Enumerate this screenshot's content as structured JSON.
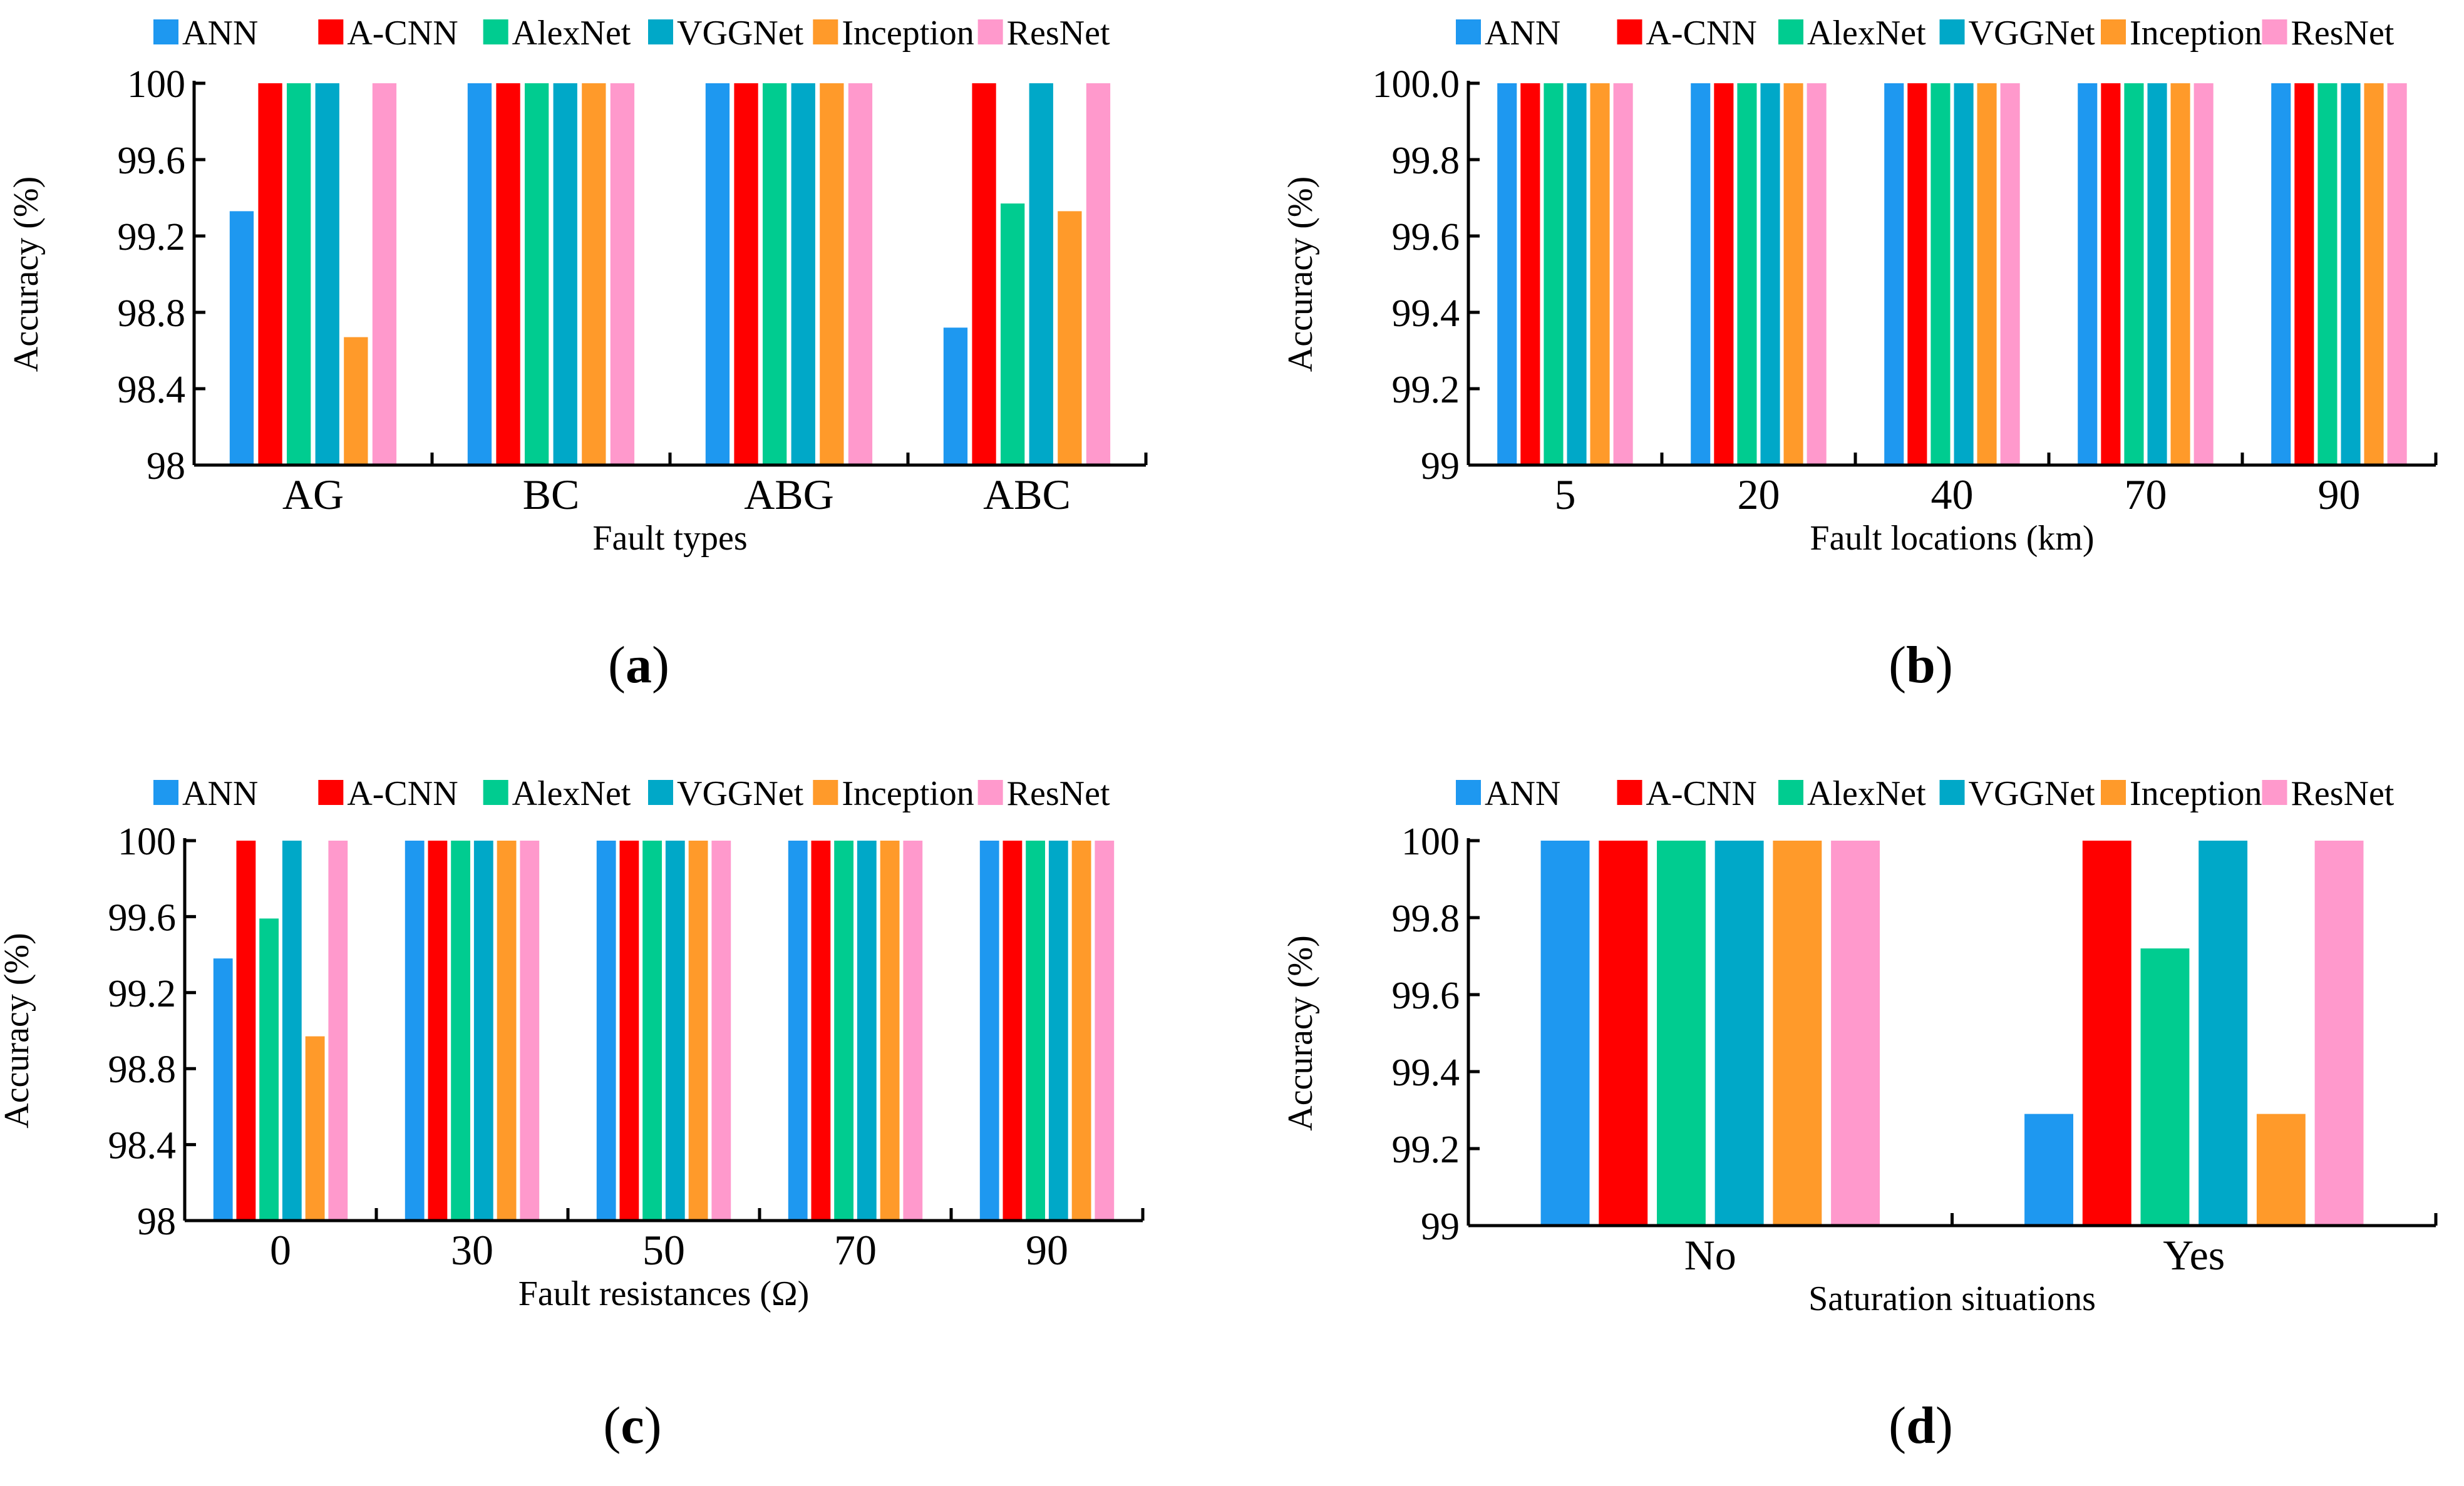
{
  "colors": {
    "ANN": "#1E98F0",
    "A-CNN": "#FF0000",
    "AlexNet": "#00CC90",
    "VGGNet": "#00A8C8",
    "Inception": "#FF9A2A",
    "ResNet": "#FF99CC"
  },
  "chart_data": [
    {
      "type": "bar",
      "panel_label": "a",
      "xlabel": "Fault types",
      "ylabel": "Accuracy (%)",
      "ylim": [
        98,
        100
      ],
      "yticks": [
        98,
        98.4,
        98.8,
        99.2,
        99.6,
        100
      ],
      "ytick_labels": [
        "98",
        "98.4",
        "98.8",
        "99.2",
        "99.6",
        "100"
      ],
      "categories": [
        "AG",
        "BC",
        "ABG",
        "ABC"
      ],
      "legend": "top",
      "series": [
        {
          "name": "ANN",
          "values": [
            99.33,
            100,
            100,
            98.72
          ]
        },
        {
          "name": "A-CNN",
          "values": [
            100,
            100,
            100,
            100
          ]
        },
        {
          "name": "AlexNet",
          "values": [
            100,
            100,
            100,
            99.37
          ]
        },
        {
          "name": "VGGNet",
          "values": [
            100,
            100,
            100,
            100
          ]
        },
        {
          "name": "Inception",
          "values": [
            98.67,
            100,
            100,
            99.33
          ]
        },
        {
          "name": "ResNet",
          "values": [
            100,
            100,
            100,
            100
          ]
        }
      ]
    },
    {
      "type": "bar",
      "panel_label": "b",
      "xlabel": "Fault locations (km)",
      "ylabel": "Accuracy (%)",
      "ylim": [
        99,
        100
      ],
      "yticks": [
        99,
        99.2,
        99.4,
        99.6,
        99.8,
        100
      ],
      "ytick_labels": [
        "99",
        "99.2",
        "99.4",
        "99.6",
        "99.8",
        "100.0"
      ],
      "categories": [
        "5",
        "20",
        "40",
        "70",
        "90"
      ],
      "legend": "top",
      "series": [
        {
          "name": "ANN",
          "values": [
            100,
            100,
            100,
            100,
            100
          ]
        },
        {
          "name": "A-CNN",
          "values": [
            100,
            100,
            100,
            100,
            100
          ]
        },
        {
          "name": "AlexNet",
          "values": [
            100,
            100,
            100,
            100,
            100
          ]
        },
        {
          "name": "VGGNet",
          "values": [
            100,
            100,
            100,
            100,
            100
          ]
        },
        {
          "name": "Inception",
          "values": [
            100,
            100,
            100,
            100,
            100
          ]
        },
        {
          "name": "ResNet",
          "values": [
            100,
            100,
            100,
            100,
            100
          ]
        }
      ]
    },
    {
      "type": "bar",
      "panel_label": "c",
      "xlabel": "Fault resistances (Ω)",
      "ylabel": "Accuracy (%)",
      "ylim": [
        98,
        100
      ],
      "yticks": [
        98,
        98.4,
        98.8,
        99.2,
        99.6,
        100
      ],
      "ytick_labels": [
        "98",
        "98.4",
        "98.8",
        "99.2",
        "99.6",
        "100"
      ],
      "categories": [
        "0",
        "30",
        "50",
        "70",
        "90"
      ],
      "legend": "top",
      "series": [
        {
          "name": "ANN",
          "values": [
            99.38,
            100,
            100,
            100,
            100
          ]
        },
        {
          "name": "A-CNN",
          "values": [
            100,
            100,
            100,
            100,
            100
          ]
        },
        {
          "name": "AlexNet",
          "values": [
            99.59,
            100,
            100,
            100,
            100
          ]
        },
        {
          "name": "VGGNet",
          "values": [
            100,
            100,
            100,
            100,
            100
          ]
        },
        {
          "name": "Inception",
          "values": [
            98.97,
            100,
            100,
            100,
            100
          ]
        },
        {
          "name": "ResNet",
          "values": [
            100,
            100,
            100,
            100,
            100
          ]
        }
      ]
    },
    {
      "type": "bar",
      "panel_label": "d",
      "xlabel": "Saturation situations",
      "ylabel": "Accuracy (%)",
      "ylim": [
        99,
        100
      ],
      "yticks": [
        99,
        99.2,
        99.4,
        99.6,
        99.8,
        100
      ],
      "ytick_labels": [
        "99",
        "99.2",
        "99.4",
        "99.6",
        "99.8",
        "100"
      ],
      "categories": [
        "No",
        "Yes"
      ],
      "legend": "top",
      "series": [
        {
          "name": "ANN",
          "values": [
            100,
            99.29
          ]
        },
        {
          "name": "A-CNN",
          "values": [
            100,
            100
          ]
        },
        {
          "name": "AlexNet",
          "values": [
            100,
            99.72
          ]
        },
        {
          "name": "VGGNet",
          "values": [
            100,
            100
          ]
        },
        {
          "name": "Inception",
          "values": [
            100,
            99.29
          ]
        },
        {
          "name": "ResNet",
          "values": [
            100,
            100
          ]
        }
      ]
    }
  ]
}
